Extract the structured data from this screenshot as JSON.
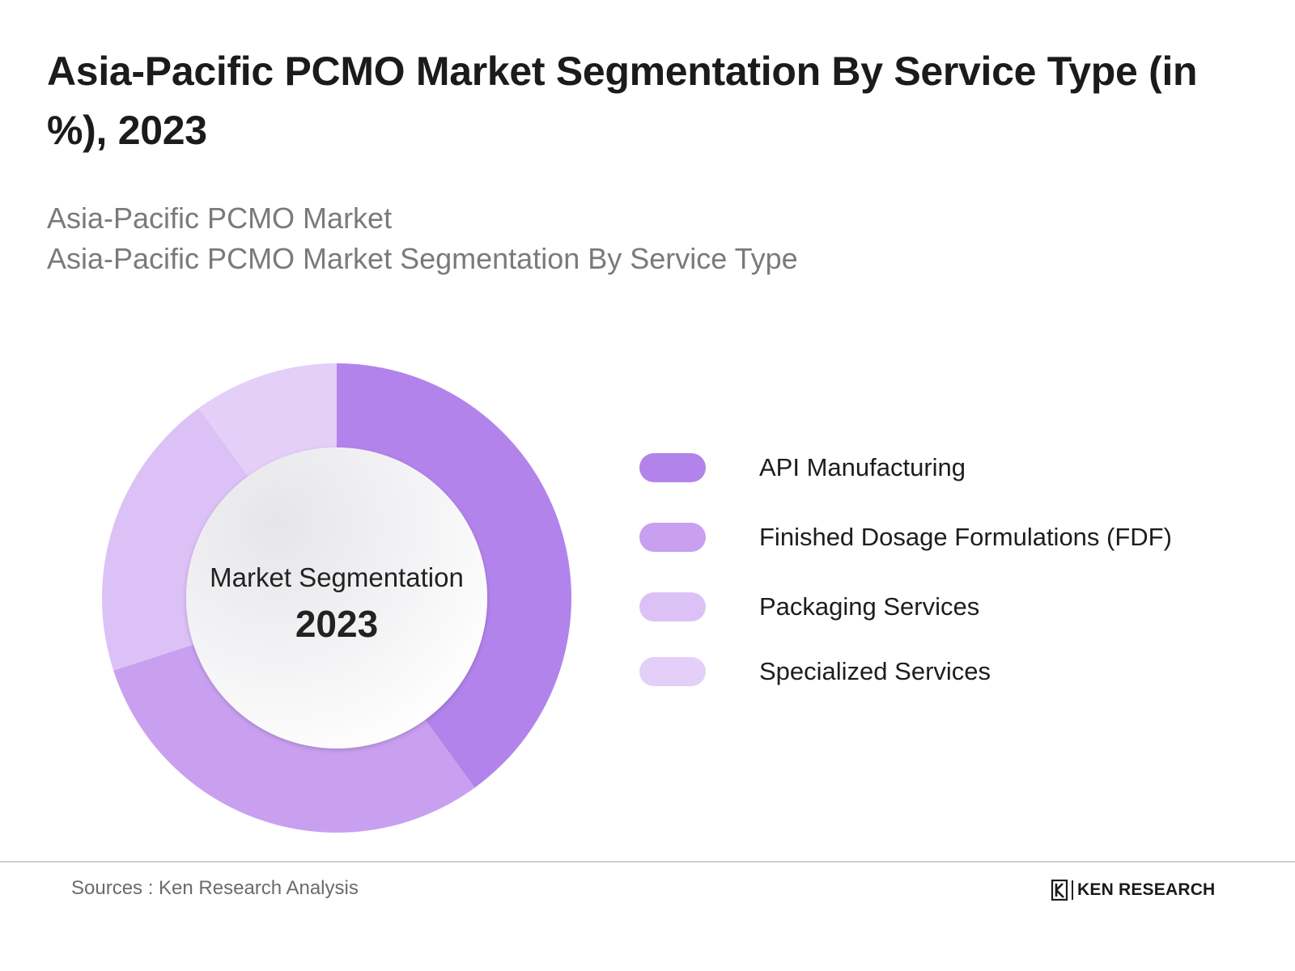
{
  "title": "Asia-Pacific PCMO Market Segmentation By Service Type (in %), 2023",
  "subtitles": [
    "Asia-Pacific PCMO Market",
    "Asia-Pacific PCMO Market Segmentation By Service Type"
  ],
  "chart_data": {
    "type": "pie",
    "variant": "donut",
    "title": "Asia-Pacific PCMO Market Segmentation By Service Type (in %), 2023",
    "center_label": "Market Segmentation",
    "center_value": "2023",
    "categories": [
      "API Manufacturing",
      "Finished Dosage Formulations (FDF)",
      "Packaging Services",
      "Specialized Services"
    ],
    "values": [
      40,
      30,
      20,
      10
    ],
    "colors": [
      "#b383ec",
      "#c9a0f0",
      "#dcc1f6",
      "#e4cff8"
    ],
    "legend_position": "right"
  },
  "footer": {
    "sources": "Sources : Ken Research Analysis",
    "logo_text": "KEN RESEARCH"
  }
}
